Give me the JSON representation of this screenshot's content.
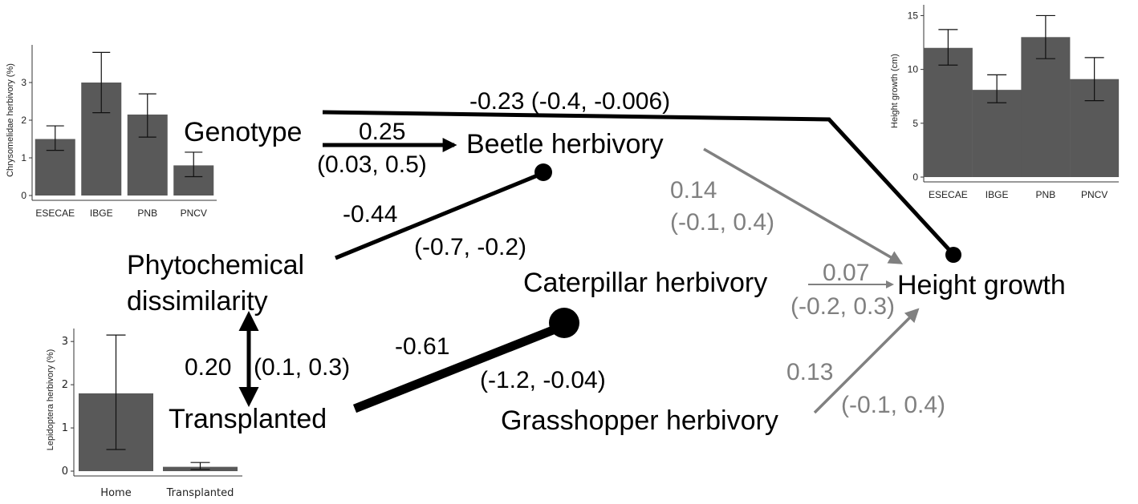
{
  "nodes": {
    "genotype": "Genotype",
    "beetle": "Beetle herbivory",
    "phyto_line1": "Phytochemical",
    "phyto_line2": "dissimilarity",
    "caterpillar": "Caterpillar herbivory",
    "transplanted": "Transplanted",
    "grasshopper": "Grasshopper herbivory",
    "height": "Height growth"
  },
  "paths": {
    "genotype_height": "-0.23 (-0.4, -0.006)",
    "genotype_beetle_coef": "0.25",
    "genotype_beetle_ci": "(0.03, 0.5)",
    "phyto_beetle_coef": "-0.44",
    "phyto_beetle_ci": "(-0.7, -0.2)",
    "phyto_transplanted_coef": "0.20",
    "phyto_transplanted_ci": "(0.1, 0.3)",
    "transplanted_caterpillar_coef": "-0.61",
    "transplanted_caterpillar_ci": "(-1.2, -0.04)",
    "beetle_height_coef": "0.14",
    "beetle_height_ci": "(-0.1, 0.4)",
    "caterpillar_height_coef": "0.07",
    "caterpillar_height_ci": "(-0.2, 0.3)",
    "grasshopper_height_coef": "0.13",
    "grasshopper_height_ci": "(-0.1, 0.4)"
  },
  "colors": {
    "significant": "#000000",
    "nonsignificant": "#808080",
    "bar": "#595959"
  },
  "chart_data": [
    {
      "type": "bar",
      "ylabel": "Chrysomelidae herbivory (%)",
      "categories": [
        "ESECAE",
        "IBGE",
        "PNB",
        "PNCV"
      ],
      "values": [
        1.5,
        3.0,
        2.15,
        0.8
      ],
      "error_low": [
        1.2,
        2.2,
        1.55,
        0.5
      ],
      "error_high": [
        1.85,
        3.8,
        2.7,
        1.15
      ],
      "ylim": [
        0,
        4
      ],
      "yticks": [
        "0",
        "1",
        "2",
        "3"
      ]
    },
    {
      "type": "bar",
      "ylabel": "Height growth (cm)",
      "categories": [
        "ESECAE",
        "IBGE",
        "PNB",
        "PNCV"
      ],
      "values": [
        12.0,
        8.1,
        13.0,
        9.1
      ],
      "error_low": [
        10.4,
        6.9,
        11.0,
        7.1
      ],
      "error_high": [
        13.7,
        9.5,
        15.0,
        11.1
      ],
      "ylim": [
        0,
        16
      ],
      "yticks": [
        "0",
        "5",
        "10",
        "15"
      ]
    },
    {
      "type": "bar",
      "ylabel": "Lepidoptera herbivory (%)",
      "categories": [
        "Home",
        "Transplanted"
      ],
      "values": [
        1.8,
        0.1
      ],
      "error_low": [
        0.5,
        0.04
      ],
      "error_high": [
        3.15,
        0.2
      ],
      "ylim": [
        0,
        3.3
      ],
      "yticks": [
        "0",
        "1",
        "2",
        "3"
      ]
    }
  ]
}
